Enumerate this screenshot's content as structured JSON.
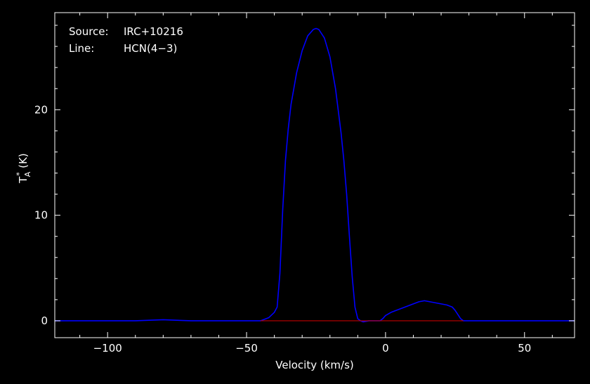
{
  "chart_data": {
    "type": "line",
    "title": "",
    "xlabel": "Velocity (km/s)",
    "ylabel_parts": {
      "base": "T",
      "subscript": "A",
      "superscript": "*",
      "unit": " (K)"
    },
    "xlim": [
      -119,
      68
    ],
    "ylim": [
      -1.6,
      29.2
    ],
    "xticks": [
      {
        "value": -100,
        "label": "−100"
      },
      {
        "value": -50,
        "label": "−50"
      },
      {
        "value": 0,
        "label": "0"
      },
      {
        "value": 50,
        "label": "50"
      }
    ],
    "yticks": [
      {
        "value": 0,
        "label": "0"
      },
      {
        "value": 10,
        "label": "10"
      },
      {
        "value": 20,
        "label": "20"
      }
    ],
    "annotations": [
      {
        "key": "Source:",
        "value": "IRC+10216"
      },
      {
        "key": "Line:",
        "value": "HCN(4−3)"
      }
    ],
    "colors": {
      "background": "#000000",
      "axes": "#ffffff",
      "spectrum": "#0000ff",
      "baseline": "#c00000"
    },
    "series": [
      {
        "color": "#0000ff",
        "x": [
          -119,
          -110,
          -100,
          -90,
          -80,
          -70,
          -60,
          -50,
          -45,
          -42,
          -40,
          -39,
          -38,
          -37,
          -36,
          -35,
          -34,
          -32,
          -30,
          -28,
          -26,
          -25,
          -24,
          -22,
          -20,
          -18,
          -16,
          -15,
          -14,
          -13,
          -12,
          -11,
          -10,
          -9,
          -8,
          -6,
          -4,
          -2,
          -1,
          0,
          2,
          4,
          6,
          8,
          10,
          12,
          14,
          16,
          18,
          20,
          22,
          24,
          25,
          26,
          27,
          28,
          30,
          40,
          50,
          60,
          68
        ],
        "y": [
          0,
          0,
          0,
          0,
          0.1,
          0,
          0,
          0,
          0,
          0.3,
          0.8,
          1.3,
          4.5,
          10.5,
          15.2,
          18.2,
          20.5,
          23.5,
          25.6,
          27.0,
          27.6,
          27.7,
          27.6,
          26.8,
          25.0,
          22.0,
          17.8,
          15.2,
          12.0,
          8.0,
          4.2,
          1.3,
          0.2,
          0,
          -0.1,
          0,
          0,
          0,
          0.2,
          0.5,
          0.8,
          1.0,
          1.2,
          1.4,
          1.6,
          1.8,
          1.9,
          1.8,
          1.7,
          1.6,
          1.5,
          1.3,
          1.0,
          0.6,
          0.2,
          0,
          0,
          0,
          0,
          0,
          0
        ]
      },
      {
        "color": "#c00000",
        "x": [
          -45,
          28
        ],
        "y": [
          0,
          0
        ]
      }
    ]
  }
}
